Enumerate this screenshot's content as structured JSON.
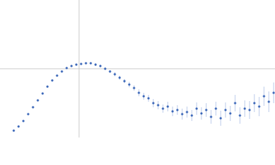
{
  "chart_data": {
    "type": "scatter",
    "xlim": [
      0,
      4
    ],
    "ylim": [
      0,
      2
    ],
    "reference_lines": {
      "x": 1.15,
      "y": 1.0
    },
    "series": [
      {
        "color": "#3a66b8",
        "error_color": "#a9bde3",
        "x": [
          0.2,
          0.27,
          0.34,
          0.41,
          0.48,
          0.55,
          0.62,
          0.69,
          0.76,
          0.83,
          0.9,
          0.97,
          1.04,
          1.11,
          1.18,
          1.25,
          1.32,
          1.39,
          1.46,
          1.53,
          1.6,
          1.67,
          1.74,
          1.81,
          1.88,
          1.95,
          2.02,
          2.09,
          2.16,
          2.23,
          2.3,
          2.37,
          2.44,
          2.51,
          2.58,
          2.65,
          2.72,
          2.79,
          2.86,
          2.93,
          3.0,
          3.07,
          3.14,
          3.21,
          3.28,
          3.35,
          3.42,
          3.49,
          3.56,
          3.63,
          3.7,
          3.77,
          3.84,
          3.91,
          3.98
        ],
        "values": [
          0.1,
          0.16,
          0.24,
          0.34,
          0.44,
          0.54,
          0.64,
          0.74,
          0.83,
          0.9,
          0.96,
          1.01,
          1.04,
          1.06,
          1.07,
          1.08,
          1.08,
          1.06,
          1.04,
          1.0,
          0.96,
          0.92,
          0.87,
          0.82,
          0.77,
          0.72,
          0.65,
          0.6,
          0.57,
          0.5,
          0.47,
          0.42,
          0.45,
          0.38,
          0.4,
          0.34,
          0.37,
          0.32,
          0.42,
          0.35,
          0.4,
          0.3,
          0.42,
          0.28,
          0.4,
          0.35,
          0.5,
          0.32,
          0.42,
          0.4,
          0.5,
          0.45,
          0.6,
          0.52,
          0.65
        ],
        "errors": [
          0.01,
          0.01,
          0.01,
          0.01,
          0.01,
          0.01,
          0.01,
          0.01,
          0.01,
          0.01,
          0.01,
          0.01,
          0.01,
          0.01,
          0.01,
          0.01,
          0.01,
          0.02,
          0.02,
          0.02,
          0.02,
          0.03,
          0.03,
          0.03,
          0.04,
          0.04,
          0.05,
          0.05,
          0.05,
          0.06,
          0.06,
          0.06,
          0.07,
          0.07,
          0.07,
          0.08,
          0.08,
          0.08,
          0.09,
          0.09,
          0.1,
          0.1,
          0.1,
          0.11,
          0.11,
          0.11,
          0.12,
          0.12,
          0.12,
          0.13,
          0.13,
          0.14,
          0.14,
          0.15,
          0.15
        ]
      }
    ]
  }
}
